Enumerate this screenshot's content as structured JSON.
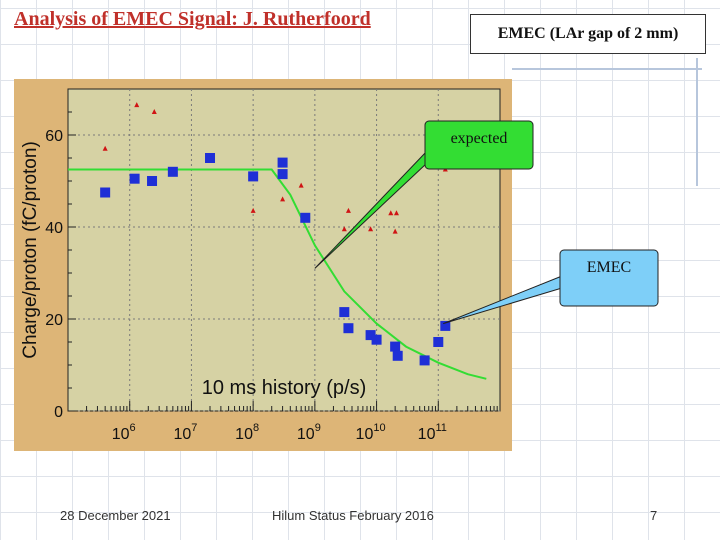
{
  "slide": {
    "title": "Analysis of EMEC  Signal: J. Rutherfoord",
    "subtitle": "EMEC (LAr gap of 2 mm)",
    "footer_date": "28 December 2021",
    "footer_center": "Hilum Status February 2016",
    "page_number": "7"
  },
  "chart_data": {
    "type": "scatter",
    "ylabel": "Charge/proton (fC/proton)",
    "xlabel": "10 ms history (p/s)",
    "x_scale": "log",
    "xlim": [
      100000.0,
      1000000000000.0
    ],
    "ylim": [
      0,
      70
    ],
    "y_ticks": [
      "0",
      "20",
      "40",
      "60"
    ],
    "x_ticks": [
      {
        "x": 1000000.0,
        "label": "10",
        "exp": "6"
      },
      {
        "x": 10000000.0,
        "label": "10",
        "exp": "7"
      },
      {
        "x": 100000000.0,
        "label": "10",
        "exp": "8"
      },
      {
        "x": 1000000000.0,
        "label": "10",
        "exp": "9"
      },
      {
        "x": 10000000000.0,
        "label": "10",
        "exp": "10"
      },
      {
        "x": 100000000000.0,
        "label": "10",
        "exp": "11"
      }
    ],
    "colors": {
      "plot_bg": "#d6d2a4",
      "frame_bg": "#ddb577",
      "squares": "#1f2fd6",
      "triangles": "#d01414",
      "expected": "#33dd33"
    },
    "series": [
      {
        "marker": "square",
        "points": [
          {
            "x": 400000.0,
            "y": 47.5
          },
          {
            "x": 1200000.0,
            "y": 50.5
          },
          {
            "x": 2300000.0,
            "y": 50
          },
          {
            "x": 5000000.0,
            "y": 52
          },
          {
            "x": 20000000.0,
            "y": 55
          },
          {
            "x": 100000000.0,
            "y": 51
          },
          {
            "x": 300000000.0,
            "y": 54
          },
          {
            "x": 300000000.0,
            "y": 51.5
          },
          {
            "x": 700000000.0,
            "y": 42
          },
          {
            "x": 3000000000.0,
            "y": 21.5
          },
          {
            "x": 3500000000.0,
            "y": 18
          },
          {
            "x": 8000000000.0,
            "y": 16.5
          },
          {
            "x": 10000000000.0,
            "y": 15.5
          },
          {
            "x": 20000000000.0,
            "y": 14
          },
          {
            "x": 22000000000.0,
            "y": 12
          },
          {
            "x": 60000000000.0,
            "y": 11
          },
          {
            "x": 100000000000.0,
            "y": 15
          },
          {
            "x": 130000000000.0,
            "y": 18.5
          }
        ]
      },
      {
        "marker": "triangle",
        "points": [
          {
            "x": 400000.0,
            "y": 57
          },
          {
            "x": 1300000.0,
            "y": 66.5
          },
          {
            "x": 2500000.0,
            "y": 65
          },
          {
            "x": 100000000.0,
            "y": 43.5
          },
          {
            "x": 300000000.0,
            "y": 46
          },
          {
            "x": 600000000.0,
            "y": 49
          },
          {
            "x": 3000000000.0,
            "y": 39.5
          },
          {
            "x": 3500000000.0,
            "y": 43.5
          },
          {
            "x": 8000000000.0,
            "y": 39.5
          },
          {
            "x": 17000000000.0,
            "y": 43
          },
          {
            "x": 21000000000.0,
            "y": 43
          },
          {
            "x": 20000000000.0,
            "y": 39
          },
          {
            "x": 130000000000.0,
            "y": 52.5
          }
        ]
      }
    ],
    "expected_curve": [
      {
        "x": 100000.0,
        "y": 52.5
      },
      {
        "x": 200000000.0,
        "y": 52.5
      },
      {
        "x": 400000000.0,
        "y": 47
      },
      {
        "x": 1000000000.0,
        "y": 36
      },
      {
        "x": 3000000000.0,
        "y": 26
      },
      {
        "x": 10000000000.0,
        "y": 19
      },
      {
        "x": 30000000000.0,
        "y": 14
      },
      {
        "x": 100000000000.0,
        "y": 10.5
      },
      {
        "x": 300000000000.0,
        "y": 8
      },
      {
        "x": 600000000000.0,
        "y": 7
      }
    ],
    "annotations": [
      {
        "text": "expected",
        "fill": "#33dd33",
        "points_to": {
          "x": 1000000000.0,
          "y": 31
        }
      },
      {
        "text": "EMEC",
        "fill": "#7ecff8",
        "points_to": {
          "x": 120000000000.0,
          "y": 19
        }
      }
    ]
  }
}
